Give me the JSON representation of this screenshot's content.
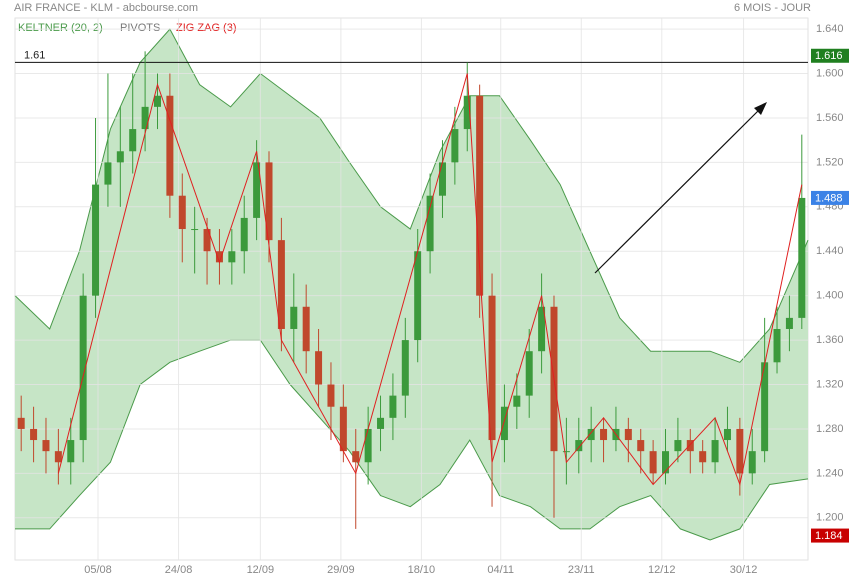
{
  "chart_data": {
    "type": "candlestick",
    "title": "AIR FRANCE - KLM - abcbourse.com",
    "period": "6 MOIS - JOUR",
    "x": [
      0,
      1,
      2,
      3,
      4,
      5,
      6,
      7,
      8,
      9,
      10,
      11,
      12,
      13,
      14,
      15,
      16,
      17,
      18,
      19,
      20,
      21,
      22,
      23,
      24,
      25,
      26,
      27,
      28,
      29,
      30,
      31,
      32,
      33,
      34,
      35,
      36,
      37,
      38,
      39,
      40,
      41,
      42,
      43,
      44,
      45,
      46,
      47,
      48,
      49,
      50,
      51,
      52,
      53,
      54,
      55,
      56,
      57,
      58,
      59,
      60,
      61,
      62,
      63
    ],
    "open": [
      1.29,
      1.28,
      1.27,
      1.26,
      1.25,
      1.27,
      1.4,
      1.5,
      1.52,
      1.53,
      1.55,
      1.57,
      1.58,
      1.49,
      1.46,
      1.46,
      1.44,
      1.43,
      1.44,
      1.47,
      1.52,
      1.45,
      1.37,
      1.39,
      1.35,
      1.32,
      1.3,
      1.26,
      1.25,
      1.28,
      1.29,
      1.31,
      1.36,
      1.44,
      1.49,
      1.52,
      1.55,
      1.58,
      1.4,
      1.27,
      1.3,
      1.31,
      1.35,
      1.39,
      1.26,
      1.26,
      1.27,
      1.28,
      1.27,
      1.28,
      1.27,
      1.26,
      1.24,
      1.26,
      1.27,
      1.26,
      1.25,
      1.27,
      1.28,
      1.24,
      1.26,
      1.34,
      1.37,
      1.38
    ],
    "high": [
      1.31,
      1.3,
      1.29,
      1.28,
      1.29,
      1.42,
      1.56,
      1.6,
      1.57,
      1.6,
      1.62,
      1.6,
      1.6,
      1.51,
      1.48,
      1.47,
      1.46,
      1.46,
      1.49,
      1.54,
      1.53,
      1.47,
      1.42,
      1.41,
      1.37,
      1.34,
      1.32,
      1.28,
      1.3,
      1.31,
      1.33,
      1.38,
      1.46,
      1.51,
      1.54,
      1.57,
      1.61,
      1.59,
      1.42,
      1.32,
      1.33,
      1.37,
      1.42,
      1.4,
      1.29,
      1.29,
      1.3,
      1.29,
      1.3,
      1.29,
      1.28,
      1.27,
      1.28,
      1.29,
      1.28,
      1.27,
      1.29,
      1.3,
      1.29,
      1.28,
      1.38,
      1.39,
      1.4,
      1.545
    ],
    "low": [
      1.26,
      1.25,
      1.24,
      1.23,
      1.23,
      1.25,
      1.38,
      1.48,
      1.48,
      1.51,
      1.53,
      1.55,
      1.47,
      1.43,
      1.42,
      1.41,
      1.41,
      1.41,
      1.42,
      1.45,
      1.43,
      1.35,
      1.34,
      1.33,
      1.3,
      1.27,
      1.25,
      1.19,
      1.23,
      1.26,
      1.27,
      1.29,
      1.34,
      1.42,
      1.47,
      1.5,
      1.53,
      1.38,
      1.21,
      1.25,
      1.28,
      1.29,
      1.33,
      1.2,
      1.23,
      1.24,
      1.25,
      1.25,
      1.26,
      1.25,
      1.24,
      1.23,
      1.23,
      1.25,
      1.24,
      1.24,
      1.24,
      1.26,
      1.22,
      1.23,
      1.25,
      1.33,
      1.35,
      1.37
    ],
    "close": [
      1.28,
      1.27,
      1.26,
      1.25,
      1.27,
      1.4,
      1.5,
      1.52,
      1.53,
      1.55,
      1.57,
      1.58,
      1.49,
      1.46,
      1.46,
      1.44,
      1.43,
      1.44,
      1.47,
      1.52,
      1.45,
      1.37,
      1.39,
      1.35,
      1.32,
      1.3,
      1.26,
      1.25,
      1.28,
      1.29,
      1.31,
      1.36,
      1.44,
      1.49,
      1.52,
      1.55,
      1.58,
      1.4,
      1.27,
      1.3,
      1.31,
      1.35,
      1.39,
      1.26,
      1.26,
      1.27,
      1.28,
      1.27,
      1.28,
      1.27,
      1.26,
      1.24,
      1.26,
      1.27,
      1.26,
      1.25,
      1.27,
      1.28,
      1.24,
      1.26,
      1.34,
      1.37,
      1.38,
      1.488
    ],
    "up_color": "#3c9a3c",
    "down_color": "#c0482c",
    "xlim": [
      -0.5,
      63.5
    ],
    "xticks": [
      {
        "value": 6.2,
        "label": "05/08"
      },
      {
        "value": 12.7,
        "label": "24/08"
      },
      {
        "value": 19.3,
        "label": "12/09"
      },
      {
        "value": 25.8,
        "label": "29/09"
      },
      {
        "value": 32.3,
        "label": "18/10"
      },
      {
        "value": 38.7,
        "label": "04/11"
      },
      {
        "value": 45.2,
        "label": "23/11"
      },
      {
        "value": 51.7,
        "label": "12/12"
      },
      {
        "value": 58.3,
        "label": "30/12"
      }
    ],
    "ylim": [
      1.162,
      1.65
    ],
    "yticks": [
      {
        "value": 1.2,
        "label": "1.200"
      },
      {
        "value": 1.24,
        "label": "1.240"
      },
      {
        "value": 1.28,
        "label": "1.280"
      },
      {
        "value": 1.32,
        "label": "1.320"
      },
      {
        "value": 1.36,
        "label": "1.360"
      },
      {
        "value": 1.4,
        "label": "1.400"
      },
      {
        "value": 1.44,
        "label": "1.440"
      },
      {
        "value": 1.48,
        "label": "1.480"
      },
      {
        "value": 1.52,
        "label": "1.520"
      },
      {
        "value": 1.56,
        "label": "1.560"
      },
      {
        "value": 1.6,
        "label": "1.600"
      },
      {
        "value": 1.64,
        "label": "1.640"
      }
    ],
    "grid": true,
    "keltner": {
      "name": "KELTNER (20, 2)",
      "color": "#4a9a4a",
      "fill": "#c6e5c6",
      "x": [
        -0.5,
        2.3,
        4.7,
        7.2,
        9.6,
        12.0,
        14.4,
        16.9,
        19.3,
        21.7,
        24.1,
        26.5,
        29.0,
        31.4,
        33.8,
        36.2,
        38.6,
        41.1,
        43.5,
        45.9,
        48.3,
        50.8,
        53.2,
        55.6,
        58.0,
        60.4,
        63.5
      ],
      "upper": [
        1.4,
        1.37,
        1.44,
        1.55,
        1.61,
        1.64,
        1.59,
        1.57,
        1.6,
        1.58,
        1.56,
        1.52,
        1.48,
        1.46,
        1.53,
        1.58,
        1.58,
        1.54,
        1.5,
        1.44,
        1.38,
        1.35,
        1.35,
        1.35,
        1.34,
        1.37,
        1.45
      ],
      "lower": [
        1.19,
        1.19,
        1.22,
        1.25,
        1.32,
        1.34,
        1.35,
        1.36,
        1.36,
        1.32,
        1.29,
        1.26,
        1.22,
        1.21,
        1.23,
        1.27,
        1.22,
        1.21,
        1.19,
        1.19,
        1.21,
        1.22,
        1.19,
        1.18,
        1.19,
        1.23,
        1.235
      ]
    },
    "pivots": {
      "name": "PIVOTS",
      "color": "#777777"
    },
    "zigzag": {
      "name": "ZIG ZAG (3)",
      "color": "#e02020",
      "x": [
        3,
        11,
        16,
        19,
        21,
        27,
        36,
        38,
        42,
        44,
        47,
        51,
        56,
        58,
        63
      ],
      "values": [
        1.24,
        1.59,
        1.43,
        1.53,
        1.36,
        1.24,
        1.6,
        1.25,
        1.4,
        1.25,
        1.29,
        1.23,
        1.29,
        1.23,
        1.5
      ]
    },
    "reference_line": 1.61,
    "price_markers": [
      {
        "value": 1.616,
        "label": "1.616",
        "color": "#1f7f1f"
      },
      {
        "value": 1.488,
        "label": "1.488",
        "color": "#3b82e6"
      },
      {
        "value": 1.184,
        "label": "1.184",
        "color": "#c80000"
      }
    ]
  }
}
